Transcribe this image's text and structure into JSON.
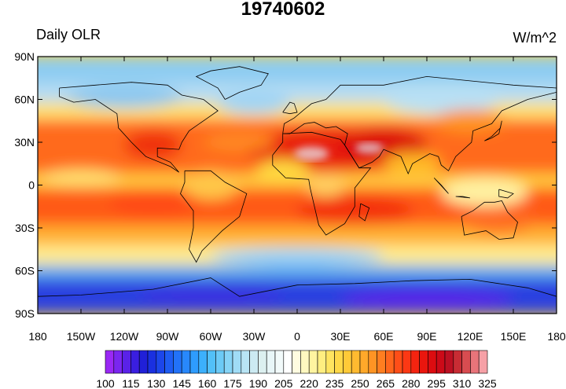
{
  "title": "19740602",
  "left_label": "Daily OLR",
  "right_label": "W/m^2",
  "map": {
    "projection": "cylindrical-equidistant",
    "lon_range": [
      -180,
      180
    ],
    "lat_range": [
      -90,
      90
    ],
    "y_ticks": [
      {
        "lat": 90,
        "label": "90N"
      },
      {
        "lat": 60,
        "label": "60N"
      },
      {
        "lat": 30,
        "label": "30N"
      },
      {
        "lat": 0,
        "label": "0"
      },
      {
        "lat": -30,
        "label": "30S"
      },
      {
        "lat": -60,
        "label": "60S"
      },
      {
        "lat": -90,
        "label": "90S"
      }
    ],
    "x_ticks": [
      {
        "lon": -180,
        "label": "180"
      },
      {
        "lon": -150,
        "label": "150W"
      },
      {
        "lon": -120,
        "label": "120W"
      },
      {
        "lon": -90,
        "label": "90W"
      },
      {
        "lon": -60,
        "label": "60W"
      },
      {
        "lon": -30,
        "label": "30W"
      },
      {
        "lon": 0,
        "label": "0"
      },
      {
        "lon": 30,
        "label": "30E"
      },
      {
        "lon": 60,
        "label": "60E"
      },
      {
        "lon": 90,
        "label": "90E"
      },
      {
        "lon": 120,
        "label": "120E"
      },
      {
        "lon": 150,
        "label": "150E"
      },
      {
        "lon": 180,
        "label": "180"
      }
    ],
    "field": "outgoing longwave radiation",
    "units": "W/m^2"
  },
  "colorbar": {
    "levels": [
      100,
      105,
      110,
      115,
      120,
      125,
      130,
      135,
      140,
      145,
      150,
      155,
      160,
      165,
      170,
      175,
      180,
      185,
      190,
      195,
      200,
      205,
      210,
      215,
      220,
      225,
      230,
      235,
      240,
      245,
      250,
      255,
      260,
      265,
      270,
      275,
      280,
      285,
      290,
      295,
      300,
      305,
      310,
      315,
      320,
      325
    ],
    "labels": [
      "100",
      "115",
      "130",
      "145",
      "160",
      "175",
      "190",
      "205",
      "220",
      "235",
      "250",
      "265",
      "280",
      "295",
      "310",
      "325"
    ],
    "colors": [
      "#9a28f5",
      "#7a26f0",
      "#5a22e8",
      "#3a1ee0",
      "#2020d8",
      "#1a30e0",
      "#1c46ea",
      "#1e5cf2",
      "#2272f8",
      "#2888fc",
      "#2e9cfe",
      "#3cb0fc",
      "#52c0f8",
      "#6ccaf6",
      "#86d4f6",
      "#a0dcf6",
      "#b8e4f4",
      "#cceaf2",
      "#dcf0f0",
      "#e8f6f8",
      "#f2fafa",
      "#ffffff",
      "#fffce0",
      "#fff8c0",
      "#fff4a0",
      "#ffee80",
      "#ffe460",
      "#ffd848",
      "#ffca38",
      "#ffba30",
      "#ffa82a",
      "#ff9424",
      "#ff7e20",
      "#ff661c",
      "#ff4e18",
      "#fc3814",
      "#f42410",
      "#ea160e",
      "#dc0c10",
      "#cc0a18",
      "#bc1022",
      "#c82c34",
      "#d84c50",
      "#e8747a",
      "#f6a0a6"
    ]
  }
}
